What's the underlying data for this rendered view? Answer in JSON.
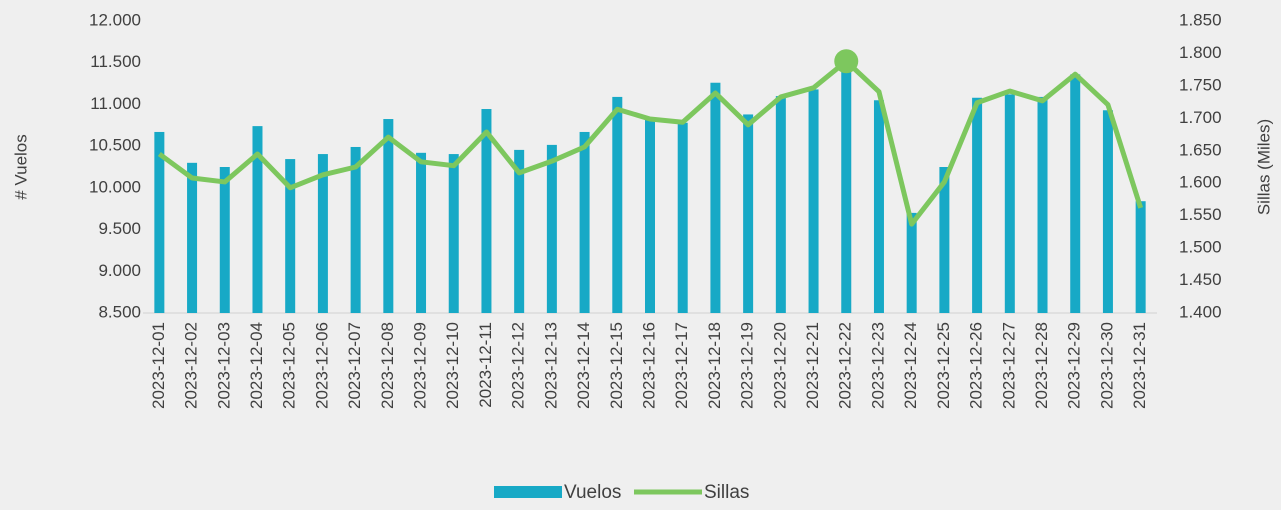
{
  "chart_data": {
    "type": "bar-line",
    "categories": [
      "2023-12-01",
      "2023-12-02",
      "2023-12-03",
      "2023-12-04",
      "2023-12-05",
      "2023-12-06",
      "2023-12-07",
      "2023-12-08",
      "2023-12-09",
      "2023-12-10",
      "2023-12-11",
      "2023-12-12",
      "2023-12-13",
      "2023-12-14",
      "2023-12-15",
      "2023-12-16",
      "2023-12-17",
      "2023-12-18",
      "2023-12-19",
      "2023-12-20",
      "2023-12-21",
      "2023-12-22",
      "2023-12-23",
      "2023-12-24",
      "2023-12-25",
      "2023-12-26",
      "2023-12-27",
      "2023-12-28",
      "2023-12-29",
      "2023-12-30",
      "2023-12-31"
    ],
    "series": [
      {
        "name": "Vuelos",
        "type": "bar",
        "color": "#17a9c6",
        "axis": "y",
        "values": [
          10670,
          10300,
          10250,
          10740,
          10345,
          10405,
          10490,
          10825,
          10420,
          10405,
          10945,
          10455,
          10515,
          10670,
          11090,
          10840,
          10780,
          11260,
          10880,
          11100,
          11180,
          11430,
          11050,
          9700,
          10250,
          11080,
          11120,
          11090,
          11360,
          10930,
          9840
        ]
      },
      {
        "name": "Sillas",
        "type": "line",
        "color": "#7dc75e",
        "axis": "y2",
        "marker_category": "2023-12-22",
        "values": [
          1645,
          1608,
          1602,
          1645,
          1593,
          1613,
          1625,
          1671,
          1633,
          1627,
          1679,
          1616,
          1634,
          1656,
          1714,
          1699,
          1694,
          1739,
          1690,
          1733,
          1747,
          1788,
          1741,
          1537,
          1602,
          1724,
          1742,
          1727,
          1768,
          1721,
          1562
        ]
      }
    ],
    "ylabel": "# Vuelos",
    "y2label": "Sillas (Miles)",
    "ylim": [
      8500,
      12000
    ],
    "yticks": [
      {
        "value": 8500,
        "label": "8.500"
      },
      {
        "value": 9000,
        "label": "9.000"
      },
      {
        "value": 9500,
        "label": "9.500"
      },
      {
        "value": 10000,
        "label": "10.000"
      },
      {
        "value": 10500,
        "label": "10.500"
      },
      {
        "value": 11000,
        "label": "11.000"
      },
      {
        "value": 11500,
        "label": "11.500"
      },
      {
        "value": 12000,
        "label": "12.000"
      }
    ],
    "y2lim": [
      1400,
      1850
    ],
    "y2ticks": [
      {
        "value": 1400,
        "label": "1.400"
      },
      {
        "value": 1450,
        "label": "1.450"
      },
      {
        "value": 1500,
        "label": "1.500"
      },
      {
        "value": 1550,
        "label": "1.550"
      },
      {
        "value": 1600,
        "label": "1.600"
      },
      {
        "value": 1650,
        "label": "1.650"
      },
      {
        "value": 1700,
        "label": "1.700"
      },
      {
        "value": 1750,
        "label": "1.750"
      },
      {
        "value": 1800,
        "label": "1.800"
      },
      {
        "value": 1850,
        "label": "1.850"
      }
    ],
    "legend": "bottom"
  }
}
